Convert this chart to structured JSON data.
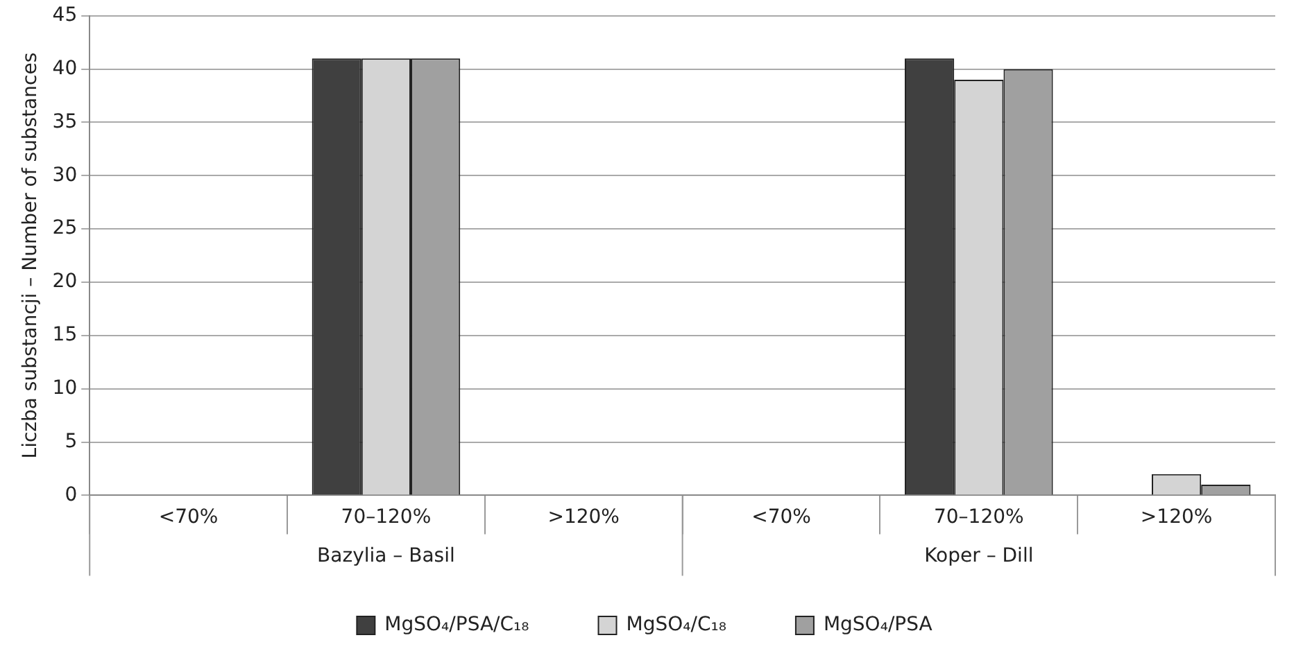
{
  "chart_data": {
    "type": "bar",
    "ylabel": "Liczba substancji – Number of substances",
    "categories": [
      "<70%",
      "70–120%",
      ">120%",
      "<70%",
      "70–120%",
      ">120%"
    ],
    "series": [
      {
        "name": "MgSO₄/PSA/C₁₈",
        "color": "#404040",
        "values": [
          0,
          41,
          0,
          0,
          41,
          0
        ]
      },
      {
        "name": "MgSO₄/C₁₈",
        "color": "#d4d4d4",
        "values": [
          0,
          41,
          0,
          0,
          39,
          2
        ]
      },
      {
        "name": "MgSO₄/PSA",
        "color": "#a0a0a0",
        "values": [
          0,
          41,
          0,
          0,
          40,
          1
        ]
      }
    ],
    "annotations": [
      "Bazylia – Basil",
      "Koper – Dill"
    ],
    "ylim": [
      0,
      45
    ],
    "yticks": [
      0,
      5,
      10,
      15,
      20,
      25,
      30,
      35,
      40,
      45
    ],
    "grid": "y",
    "legend": "bottom"
  }
}
